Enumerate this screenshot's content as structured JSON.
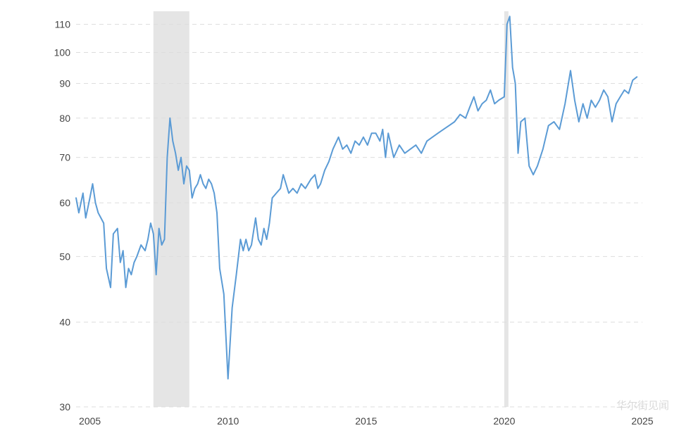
{
  "chart_data": {
    "type": "line",
    "title": "",
    "xlabel": "",
    "ylabel": "",
    "y_scale": "log",
    "ylim": [
      30,
      115
    ],
    "xlim": [
      2004.5,
      2025.0
    ],
    "grid": true,
    "y_ticks": [
      30,
      40,
      50,
      60,
      70,
      80,
      90,
      100,
      110
    ],
    "y_tick_labels": [
      "30",
      "40",
      "50",
      "60",
      "70",
      "80",
      "90",
      "100",
      "110"
    ],
    "x_ticks": [
      2005,
      2010,
      2015,
      2020,
      2025
    ],
    "x_tick_labels": [
      "2005",
      "2010",
      "2015",
      "2020",
      "2025"
    ],
    "shaded_periods": [
      [
        2007.3,
        2008.6
      ],
      [
        2020.0,
        2020.15
      ]
    ],
    "colors": {
      "line": "#5b9bd5",
      "grid": "#dddddd",
      "shade": "#e5e5e5"
    },
    "series": [
      {
        "x": [
          2004.5,
          2004.6,
          2004.75,
          2004.85,
          2005.0,
          2005.1,
          2005.2,
          2005.3,
          2005.4,
          2005.5,
          2005.6,
          2005.75,
          2005.85,
          2006.0,
          2006.1,
          2006.2,
          2006.3,
          2006.4,
          2006.5,
          2006.6,
          2006.7,
          2006.85,
          2007.0,
          2007.1,
          2007.2,
          2007.3,
          2007.4,
          2007.5,
          2007.6,
          2007.7,
          2007.8,
          2007.9,
          2008.0,
          2008.1,
          2008.2,
          2008.3,
          2008.4,
          2008.5,
          2008.6,
          2008.7,
          2008.8,
          2008.9,
          2009.0,
          2009.1,
          2009.2,
          2009.3,
          2009.4,
          2009.5,
          2009.6,
          2009.7,
          2009.85,
          2010.0,
          2010.15,
          2010.3,
          2010.45,
          2010.55,
          2010.65,
          2010.75,
          2010.85,
          2011.0,
          2011.1,
          2011.2,
          2011.3,
          2011.4,
          2011.5,
          2011.6,
          2011.75,
          2011.9,
          2012.0,
          2012.2,
          2012.35,
          2012.5,
          2012.65,
          2012.8,
          2013.0,
          2013.15,
          2013.25,
          2013.35,
          2013.5,
          2013.65,
          2013.8,
          2014.0,
          2014.15,
          2014.3,
          2014.45,
          2014.6,
          2014.75,
          2014.9,
          2015.05,
          2015.2,
          2015.35,
          2015.5,
          2015.6,
          2015.7,
          2015.8,
          2016.0,
          2016.2,
          2016.4,
          2016.6,
          2016.8,
          2017.0,
          2017.2,
          2017.4,
          2017.6,
          2017.8,
          2018.0,
          2018.2,
          2018.4,
          2018.6,
          2018.75,
          2018.9,
          2019.05,
          2019.2,
          2019.35,
          2019.5,
          2019.65,
          2019.8,
          2020.0,
          2020.1,
          2020.2,
          2020.3,
          2020.4,
          2020.5,
          2020.6,
          2020.75,
          2020.9,
          2021.05,
          2021.2,
          2021.4,
          2021.6,
          2021.8,
          2022.0,
          2022.2,
          2022.4,
          2022.55,
          2022.7,
          2022.85,
          2023.0,
          2023.15,
          2023.3,
          2023.45,
          2023.6,
          2023.75,
          2023.9,
          2024.05,
          2024.2,
          2024.35,
          2024.5,
          2024.65,
          2024.8
        ],
        "values": [
          61,
          58,
          62,
          57,
          61,
          64,
          60,
          58,
          57,
          56,
          48,
          45,
          54,
          55,
          49,
          51,
          45,
          48,
          47,
          49,
          50,
          52,
          51,
          53,
          56,
          54,
          47,
          55,
          52,
          53,
          70,
          80,
          74,
          71,
          67,
          70,
          64,
          68,
          67,
          61,
          63,
          64,
          66,
          64,
          63,
          65,
          64,
          62,
          58,
          48,
          44,
          33,
          42,
          47,
          53,
          51,
          53,
          51,
          52,
          57,
          53,
          52,
          55,
          53,
          56,
          61,
          62,
          63,
          66,
          62,
          63,
          62,
          64,
          63,
          65,
          66,
          63,
          64,
          67,
          69,
          72,
          75,
          72,
          73,
          71,
          74,
          73,
          75,
          73,
          76,
          76,
          74,
          77,
          70,
          76,
          70,
          73,
          71,
          72,
          73,
          71,
          74,
          75,
          76,
          77,
          78,
          79,
          81,
          80,
          83,
          86,
          82,
          84,
          85,
          88,
          84,
          85,
          86,
          110,
          113,
          95,
          90,
          71,
          79,
          80,
          68,
          66,
          68,
          72,
          78,
          79,
          77,
          84,
          94,
          85,
          79,
          84,
          80,
          85,
          83,
          85,
          88,
          86,
          79,
          84,
          86,
          88,
          87,
          91,
          92
        ]
      }
    ]
  },
  "watermark": "华尔街见闻"
}
